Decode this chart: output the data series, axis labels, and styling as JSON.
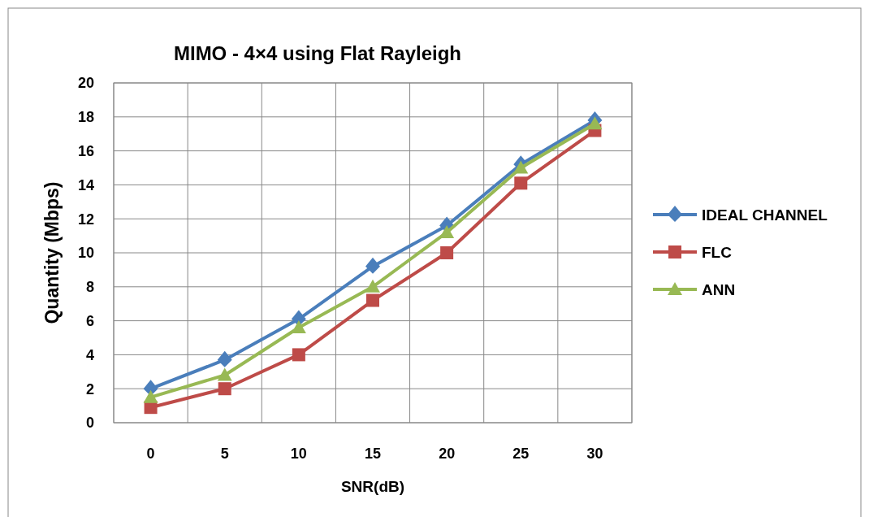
{
  "chart_data": {
    "type": "line",
    "title": "MIMO - 4×4 using Flat Rayleigh",
    "xlabel": "SNR(dB)",
    "ylabel": "Quantity (Mbps)",
    "categories": [
      "0",
      "5",
      "10",
      "15",
      "20",
      "25",
      "30"
    ],
    "ylim": [
      0,
      20
    ],
    "yticks": [
      0,
      2,
      4,
      6,
      8,
      10,
      12,
      14,
      16,
      18,
      20
    ],
    "grid": true,
    "legend": "right",
    "series": [
      {
        "name": "IDEAL CHANNEL",
        "color": "#4a7ebb",
        "marker": "diamond",
        "values": [
          2.0,
          3.7,
          6.1,
          9.2,
          11.6,
          15.2,
          17.8
        ]
      },
      {
        "name": "FLC",
        "color": "#be4b48",
        "marker": "square",
        "values": [
          0.9,
          2.0,
          4.0,
          7.2,
          10.0,
          14.1,
          17.2
        ]
      },
      {
        "name": "ANN",
        "color": "#98b954",
        "marker": "triangle",
        "values": [
          1.5,
          2.8,
          5.6,
          8.0,
          11.2,
          15.0,
          17.6
        ]
      }
    ]
  }
}
